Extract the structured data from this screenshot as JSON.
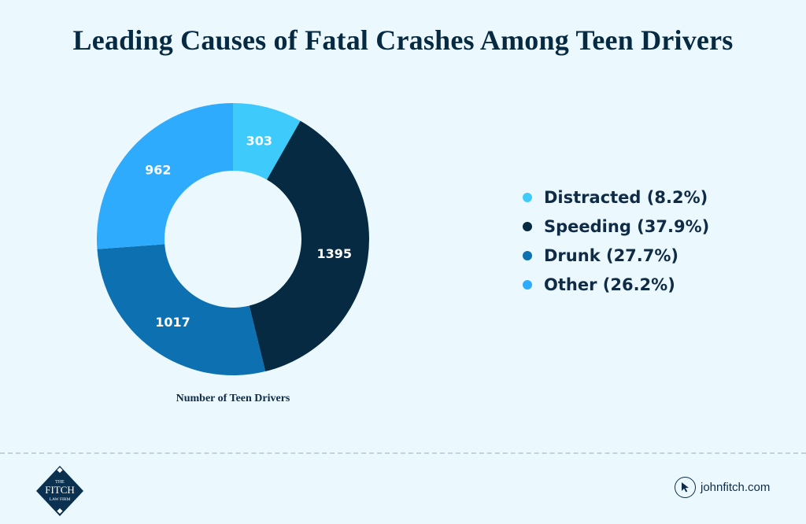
{
  "chart_data": {
    "type": "pie",
    "variant": "donut",
    "title": "Leading Causes of Fatal Crashes Among Teen Drivers",
    "xlabel": "Number of Teen Drivers",
    "ylabel": "",
    "categories": [
      "Distracted",
      "Speeding",
      "Drunk",
      "Other"
    ],
    "values": [
      303,
      1395,
      1017,
      962
    ],
    "percentages": [
      8.2,
      37.9,
      27.7,
      26.2
    ],
    "value_labels": [
      "303",
      "1395",
      "1017",
      "962"
    ],
    "colors": [
      "#3ecafb",
      "#052a42",
      "#0c70b1",
      "#2eabfd"
    ],
    "legend": {
      "placement": "right",
      "entries": [
        "Distracted (8.2%)",
        "Speeding (37.9%)",
        "Drunk (27.7%)",
        "Other (26.2%)"
      ]
    },
    "grid": false
  },
  "footer": {
    "logo": {
      "line1": "THE",
      "line2": "FITCH",
      "line3": "LAW FIRM",
      "color": "#0a3150"
    },
    "website": {
      "icon": "cursor-arrow-icon",
      "text": "johnfitch.com"
    }
  },
  "colors": {
    "background": "#ebf9ff",
    "text": "#062a42"
  }
}
